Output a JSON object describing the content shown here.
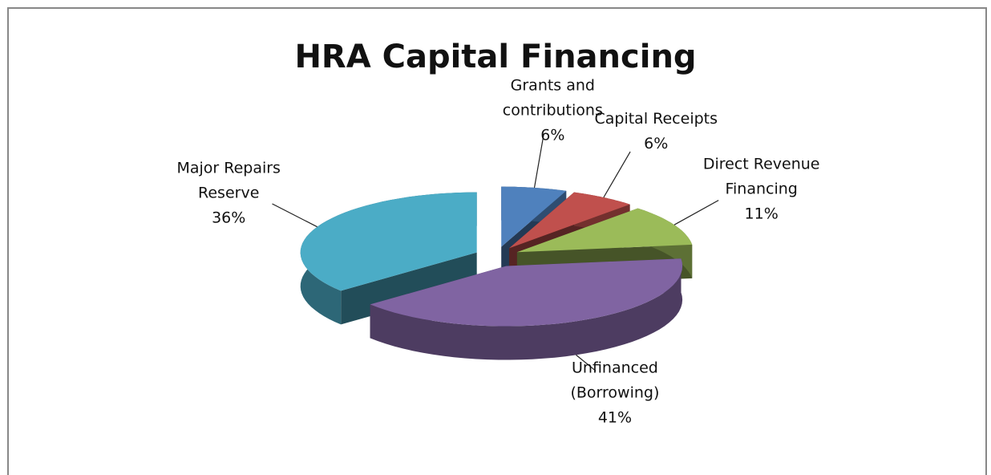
{
  "chart_data": {
    "type": "pie",
    "title": "HRA Capital Financing",
    "categories": [
      "Grants and contributions",
      "Capital Receipts",
      "Direct Revenue Financing",
      "Unfinanced (Borrowing)",
      "Major Repairs Reserve"
    ],
    "values": [
      6,
      6,
      11,
      41,
      36
    ],
    "value_labels": [
      "6%",
      "6%",
      "11%",
      "41%",
      "36%"
    ],
    "colors": [
      "#4f81bd",
      "#c0504d",
      "#9bbb59",
      "#8064a2",
      "#4bacc6"
    ]
  }
}
